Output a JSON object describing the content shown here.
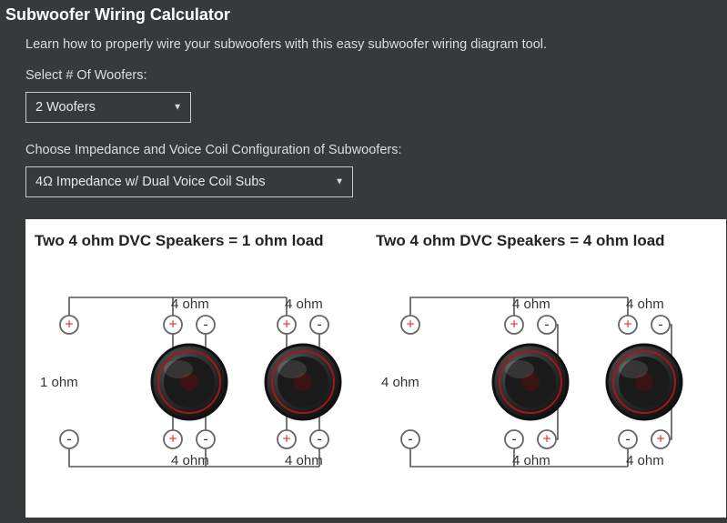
{
  "title": "Subwoofer Wiring Calculator",
  "intro": "Learn how to properly wire your subwoofers with this easy subwoofer wiring diagram tool.",
  "field1": {
    "label": "Select # Of Woofers:",
    "value": "2 Woofers"
  },
  "field2": {
    "label": "Choose Impedance and Voice Coil Configuration of Subwoofers:",
    "value": "4Ω Impedance w/ Dual Voice Coil Subs"
  },
  "diagram": {
    "background_color": "#ffffff",
    "wire_color": "#555555",
    "plus_color": "#d9372a",
    "neg_color": "#333333",
    "panelA": {
      "title": "Two 4 ohm DVC Speakers = 1 ohm load",
      "load_label": "1 ohm",
      "coil_label": "4 ohm",
      "wiring": "parallel",
      "speakers": [
        {
          "top": {
            "left": "+",
            "right": "-"
          },
          "bottom": {
            "left": "+",
            "right": "-"
          }
        },
        {
          "top": {
            "left": "+",
            "right": "-"
          },
          "bottom": {
            "left": "+",
            "right": "-"
          }
        }
      ]
    },
    "panelB": {
      "title": "Two 4 ohm DVC Speakers = 4 ohm load",
      "load_label": "4 ohm",
      "coil_label": "4 ohm",
      "wiring": "series-parallel",
      "speakers": [
        {
          "top": {
            "left": "+",
            "right": "-"
          },
          "bottom": {
            "left": "-",
            "right": "+"
          }
        },
        {
          "top": {
            "left": "+",
            "right": "-"
          },
          "bottom": {
            "left": "-",
            "right": "+"
          }
        }
      ]
    }
  }
}
